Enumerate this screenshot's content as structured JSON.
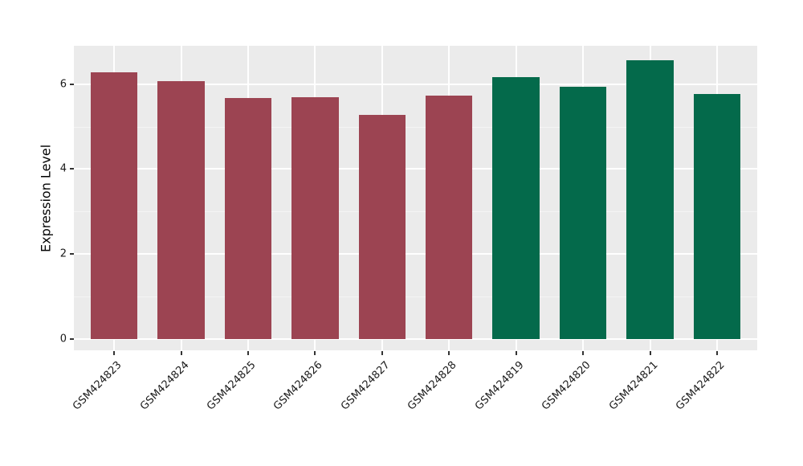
{
  "figure": {
    "background": "#ffffff",
    "panel_background": "#ebebeb",
    "grid_major_color": "#ffffff",
    "grid_minor_color": "#f4f4f4",
    "tick_mark_color": "#333333",
    "axis_text_color": "#1a1a1a",
    "bar_color_group_left": "#9c4452",
    "bar_color_group_right": "#046a4b"
  },
  "chart_data": {
    "type": "bar",
    "title": "",
    "xlabel": "",
    "ylabel": "Expression Level",
    "categories": [
      "GSM424823",
      "GSM424824",
      "GSM424825",
      "GSM424826",
      "GSM424827",
      "GSM424828",
      "GSM424819",
      "GSM424820",
      "GSM424821",
      "GSM424822"
    ],
    "values": [
      6.28,
      6.07,
      5.68,
      5.7,
      5.27,
      5.73,
      6.17,
      5.93,
      6.57,
      5.77
    ],
    "colors": [
      "#9c4452",
      "#9c4452",
      "#9c4452",
      "#9c4452",
      "#9c4452",
      "#9c4452",
      "#046a4b",
      "#046a4b",
      "#046a4b",
      "#046a4b"
    ],
    "ylim": [
      0,
      6.9
    ],
    "yticks": [
      0,
      2,
      4,
      6
    ],
    "yticks_minor": [
      1,
      3,
      5
    ],
    "grid": true,
    "legend": "none",
    "x_label_rotation": 45,
    "bar_width_fraction": 0.7
  }
}
